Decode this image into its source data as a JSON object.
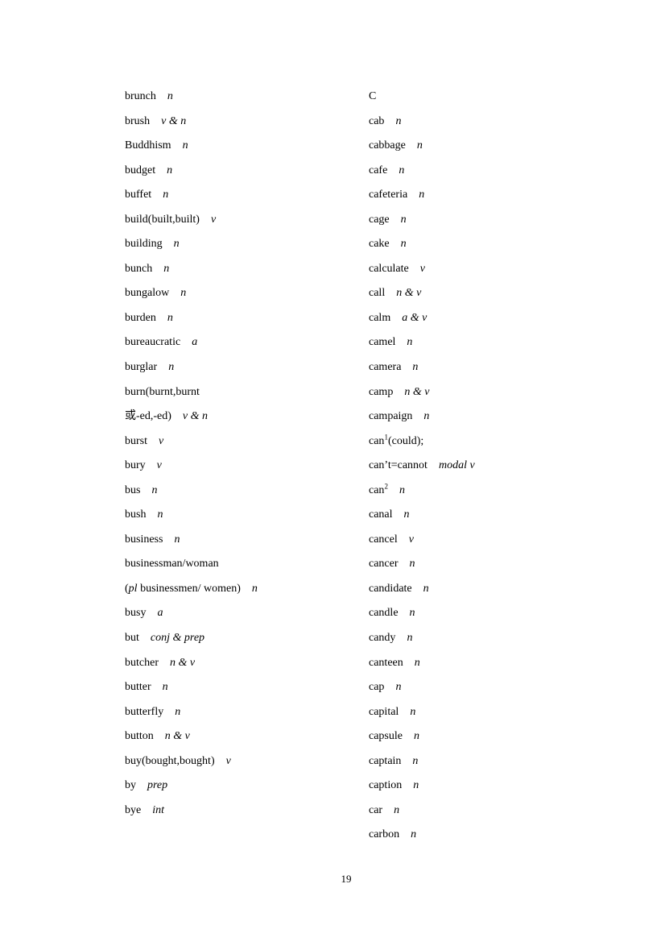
{
  "left_column": [
    {
      "w": "brunch",
      "p": "n"
    },
    {
      "w": "brush",
      "p": "v & n"
    },
    {
      "w": "Buddhism",
      "p": "n"
    },
    {
      "w": "budget",
      "p": "n"
    },
    {
      "w": "buffet",
      "p": "n"
    },
    {
      "w": "build(built,built)",
      "p": "v"
    },
    {
      "w": "building",
      "p": "n"
    },
    {
      "w": "bunch",
      "p": "n"
    },
    {
      "w": "bungalow",
      "p": "n"
    },
    {
      "w": "burden",
      "p": "n"
    },
    {
      "w": "bureaucratic",
      "p": "a"
    },
    {
      "w": "burglar",
      "p": "n"
    },
    {
      "w": "burn(burnt,burnt"
    },
    {
      "w": "或-ed,-ed)",
      "p": "v & n"
    },
    {
      "w": "burst",
      "p": "v"
    },
    {
      "w": "bury",
      "p": "v"
    },
    {
      "w": "bus",
      "p": "n"
    },
    {
      "w": "bush",
      "p": "n"
    },
    {
      "w": "business",
      "p": "n"
    },
    {
      "w": "businessman/woman"
    },
    {
      "pre": "(",
      "it": "pl",
      "w": " businessmen/ women)",
      "p": "n"
    },
    {
      "w": "busy",
      "p": "a"
    },
    {
      "w": "but",
      "p": "conj & prep"
    },
    {
      "w": "butcher",
      "p": "n & v"
    },
    {
      "w": "butter",
      "p": "n"
    },
    {
      "w": "butterfly",
      "p": "n"
    },
    {
      "w": "button",
      "p": "n & v"
    },
    {
      "w": "buy(bought,bought)",
      "p": "v"
    },
    {
      "w": "by",
      "p": "prep"
    },
    {
      "w": "bye",
      "p": "int"
    }
  ],
  "right_column": [
    {
      "w": "C"
    },
    {
      "w": "cab",
      "p": "n"
    },
    {
      "w": "cabbage",
      "p": "n"
    },
    {
      "w": "cafe",
      "p": "n"
    },
    {
      "w": "cafeteria",
      "p": "n"
    },
    {
      "w": "cage",
      "p": "n"
    },
    {
      "w": "cake",
      "p": "n"
    },
    {
      "w": "calculate",
      "p": "v"
    },
    {
      "w": "call",
      "p": "n & v"
    },
    {
      "w": "calm",
      "p": "a & v"
    },
    {
      "w": "camel",
      "p": "n"
    },
    {
      "w": "camera",
      "p": "n"
    },
    {
      "w": "camp",
      "p": "n & v"
    },
    {
      "w": "campaign",
      "p": "n"
    },
    {
      "w": "can",
      "sup": "1",
      "w2": "(could);"
    },
    {
      "w": "can’t=cannot",
      "p": "modal v"
    },
    {
      "w": "can",
      "sup": "2",
      "p": "n"
    },
    {
      "w": "canal",
      "p": "n"
    },
    {
      "w": "cancel",
      "p": "v"
    },
    {
      "w": "cancer",
      "p": "n"
    },
    {
      "w": "candidate",
      "p": "n"
    },
    {
      "w": "candle",
      "p": "n"
    },
    {
      "w": "candy",
      "p": "n"
    },
    {
      "w": "canteen",
      "p": "n"
    },
    {
      "w": "cap",
      "p": "n"
    },
    {
      "w": "capital",
      "p": "n"
    },
    {
      "w": "capsule",
      "p": "n"
    },
    {
      "w": "captain",
      "p": "n"
    },
    {
      "w": "caption",
      "p": "n"
    },
    {
      "w": "car",
      "p": "n"
    },
    {
      "w": "carbon",
      "p": "n"
    }
  ],
  "page_number": "19"
}
